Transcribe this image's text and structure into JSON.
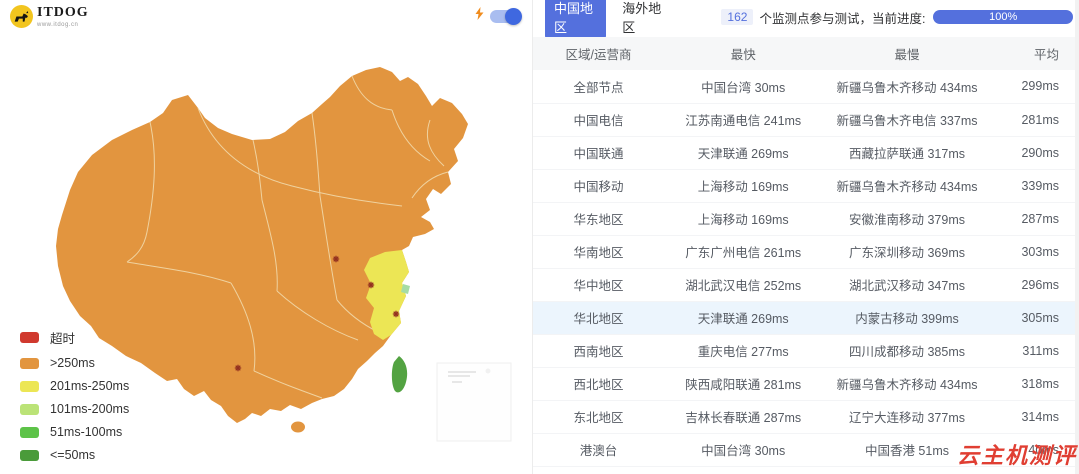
{
  "brand": {
    "name": "ITDOG",
    "sub": "www.itdog.cn"
  },
  "map": {
    "legend": [
      {
        "label": "超时",
        "color": "#d0392e"
      },
      {
        "label": ">250ms",
        "color": "#e2953f"
      },
      {
        "label": "201ms-250ms",
        "color": "#ece655"
      },
      {
        "label": "101ms-200ms",
        "color": "#bbe377"
      },
      {
        "label": "51ms-100ms",
        "color": "#5dc348"
      },
      {
        "label": "<=50ms",
        "color": "#4a9b3a"
      }
    ],
    "region_colors": {
      "default": "#e2953f",
      "east_coast": "#ece655",
      "taiwan": "#53a342"
    }
  },
  "toolbar": {
    "tab_china": "中国地区",
    "tab_overseas": "海外地区",
    "count": "162",
    "count_text": "个监测点参与测试，当前进度:",
    "progress_label": "100%",
    "progress_value": 100
  },
  "table": {
    "columns": [
      "区域/运营商",
      "最快",
      "最慢",
      "平均"
    ],
    "rows": [
      {
        "region": "全部节点",
        "fastest": "中国台湾 30ms",
        "slowest": "新疆乌鲁木齐移动 434ms",
        "avg": "299ms",
        "highlighted": false
      },
      {
        "region": "中国电信",
        "fastest": "江苏南通电信 241ms",
        "slowest": "新疆乌鲁木齐电信 337ms",
        "avg": "281ms",
        "highlighted": false
      },
      {
        "region": "中国联通",
        "fastest": "天津联通 269ms",
        "slowest": "西藏拉萨联通 317ms",
        "avg": "290ms",
        "highlighted": false
      },
      {
        "region": "中国移动",
        "fastest": "上海移动 169ms",
        "slowest": "新疆乌鲁木齐移动 434ms",
        "avg": "339ms",
        "highlighted": false
      },
      {
        "region": "华东地区",
        "fastest": "上海移动 169ms",
        "slowest": "安徽淮南移动 379ms",
        "avg": "287ms",
        "highlighted": false
      },
      {
        "region": "华南地区",
        "fastest": "广东广州电信 261ms",
        "slowest": "广东深圳移动 369ms",
        "avg": "303ms",
        "highlighted": false
      },
      {
        "region": "华中地区",
        "fastest": "湖北武汉电信 252ms",
        "slowest": "湖北武汉移动 347ms",
        "avg": "296ms",
        "highlighted": false
      },
      {
        "region": "华北地区",
        "fastest": "天津联通 269ms",
        "slowest": "内蒙古移动 399ms",
        "avg": "305ms",
        "highlighted": true
      },
      {
        "region": "西南地区",
        "fastest": "重庆电信 277ms",
        "slowest": "四川成都移动 385ms",
        "avg": "311ms",
        "highlighted": false
      },
      {
        "region": "西北地区",
        "fastest": "陕西咸阳联通 281ms",
        "slowest": "新疆乌鲁木齐移动 434ms",
        "avg": "318ms",
        "highlighted": false
      },
      {
        "region": "东北地区",
        "fastest": "吉林长春联通 287ms",
        "slowest": "辽宁大连移动 377ms",
        "avg": "314ms",
        "highlighted": false
      },
      {
        "region": "港澳台",
        "fastest": "中国台湾 30ms",
        "slowest": "中国香港 51ms",
        "avg": "40ms",
        "highlighted": false
      }
    ]
  },
  "watermark": {
    "text": "云主机测评",
    "color": "#e03e32"
  },
  "colors": {
    "accent": "#5470dd",
    "highlight_row": "#ecf5fd"
  }
}
